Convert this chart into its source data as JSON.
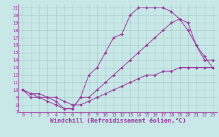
{
  "xlabel": "Windchill (Refroidissement éolien,°C)",
  "bg_color": "#c8e8e8",
  "line_color": "#993399",
  "grid_color": "#aacccc",
  "xlim": [
    -0.5,
    23.5
  ],
  "ylim": [
    7,
    21.5
  ],
  "xticks": [
    0,
    1,
    2,
    3,
    4,
    5,
    6,
    7,
    8,
    9,
    10,
    11,
    12,
    13,
    14,
    15,
    16,
    17,
    18,
    19,
    20,
    21,
    22,
    23
  ],
  "yticks": [
    7,
    8,
    9,
    10,
    11,
    12,
    13,
    14,
    15,
    16,
    17,
    18,
    19,
    20,
    21
  ],
  "line1_x": [
    0,
    1,
    2,
    3,
    4,
    5,
    6,
    7,
    8,
    9,
    10,
    11,
    12,
    13,
    14,
    15,
    16,
    17,
    18,
    19,
    20,
    21,
    22,
    23
  ],
  "line1_y": [
    10,
    9,
    9,
    8.5,
    8,
    7.5,
    7.5,
    9,
    12,
    13,
    15,
    17,
    17.5,
    20,
    21,
    21,
    21,
    21,
    20.5,
    19.5,
    19,
    16,
    14,
    14
  ],
  "line2_x": [
    0,
    1,
    2,
    3,
    4,
    5,
    6,
    7,
    8,
    9,
    10,
    11,
    12,
    13,
    14,
    15,
    16,
    17,
    18,
    19,
    20,
    21,
    22,
    23
  ],
  "line2_y": [
    10,
    9.5,
    9,
    9,
    8.5,
    7.5,
    7.5,
    9,
    9,
    10,
    11,
    12,
    13,
    14,
    15,
    16,
    17,
    18,
    19,
    19.5,
    18,
    16,
    14.5,
    13
  ],
  "line3_x": [
    0,
    1,
    2,
    3,
    4,
    5,
    6,
    7,
    8,
    9,
    10,
    11,
    12,
    13,
    14,
    15,
    16,
    17,
    18,
    19,
    20,
    21,
    22,
    23
  ],
  "line3_y": [
    10,
    9.5,
    9.5,
    9,
    9,
    8.5,
    8,
    8,
    8.5,
    9,
    9.5,
    10,
    10.5,
    11,
    11.5,
    12,
    12,
    12.5,
    12.5,
    13,
    13,
    13,
    13,
    13
  ],
  "marker": "D",
  "markersize": 2,
  "linewidth": 0.8,
  "tick_fontsize": 5,
  "xlabel_fontsize": 6.5
}
